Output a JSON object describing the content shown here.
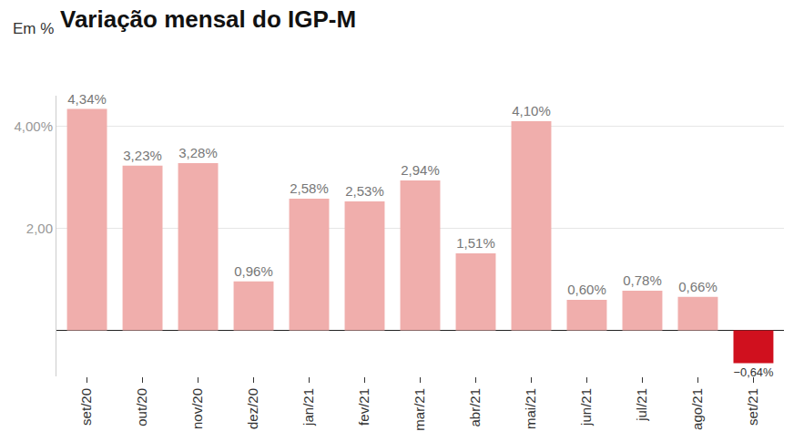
{
  "chart_data": {
    "type": "bar",
    "title": "Variação mensal do IGP-M",
    "subtitle": "Em %",
    "categories": [
      "set/20",
      "out/20",
      "nov/20",
      "dez/20",
      "jan/21",
      "fev/21",
      "mar/21",
      "abr/21",
      "mai/21",
      "jun/21",
      "jul/21",
      "ago/21",
      "set/21"
    ],
    "values": [
      4.34,
      3.23,
      3.28,
      0.96,
      2.58,
      2.53,
      2.94,
      1.51,
      4.1,
      0.6,
      0.78,
      0.66,
      -0.64
    ],
    "value_labels": [
      "4,34%",
      "3,23%",
      "3,28%",
      "0,96%",
      "2,58%",
      "2,53%",
      "2,94%",
      "1,51%",
      "4,10%",
      "0,60%",
      "0,78%",
      "0,66%",
      "−0,64%"
    ],
    "colors": [
      "#f0aeac",
      "#f0aeac",
      "#f0aeac",
      "#f0aeac",
      "#f0aeac",
      "#f0aeac",
      "#f0aeac",
      "#f0aeac",
      "#f0aeac",
      "#f0aeac",
      "#f0aeac",
      "#f0aeac",
      "#d0101e"
    ],
    "ylim": [
      -0.9,
      4.6
    ],
    "yticks": [
      {
        "value": 2,
        "label": "2,00"
      },
      {
        "value": 4,
        "label": "4,00%"
      }
    ],
    "grid": true,
    "data_labels": true
  }
}
